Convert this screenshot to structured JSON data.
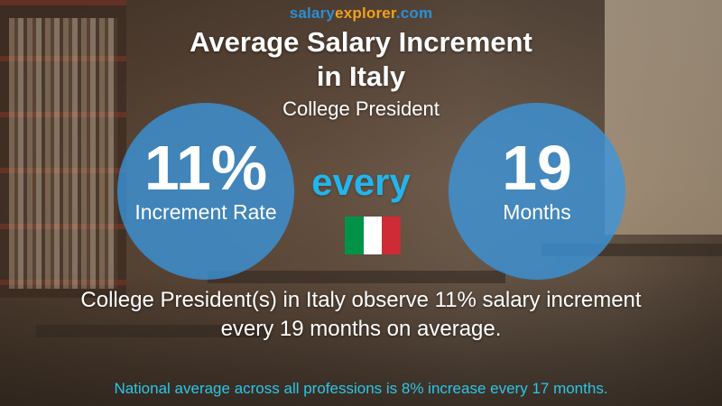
{
  "brand": {
    "part1": "salary",
    "part2": "explorer",
    "part3": ".com"
  },
  "header": {
    "title_line1": "Average Salary Increment",
    "title_line2": "in Italy",
    "subtitle": "College President"
  },
  "increment": {
    "rate_value": "11%",
    "rate_label": "Increment Rate",
    "connector": "every",
    "period_value": "19",
    "period_label": "Months"
  },
  "flag": {
    "country": "Italy",
    "colors": [
      "#009246",
      "#ffffff",
      "#ce2b37"
    ]
  },
  "description": {
    "line1": "College President(s) in Italy observe 11% salary increment",
    "line2": "every 19 months on average."
  },
  "footer": {
    "text": "National average across all professions is 8% increase every 17 months."
  },
  "colors": {
    "circle": "#3a96de",
    "every": "#22b5ec",
    "footer": "#2cc6e8",
    "brand_blue": "#2b8fd6",
    "brand_orange": "#f0a020"
  }
}
